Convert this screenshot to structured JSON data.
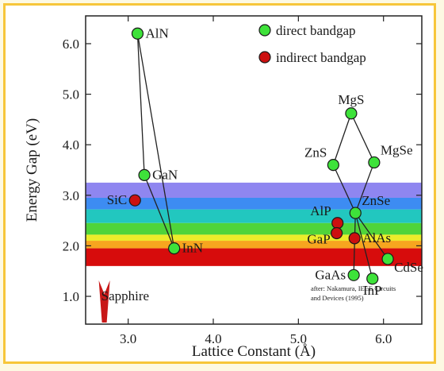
{
  "chart_data": {
    "type": "scatter",
    "xlabel": "Lattice Constant (Å)",
    "ylabel": "Energy Gap (eV)",
    "xlim": [
      2.5,
      6.45
    ],
    "ylim": [
      0.45,
      6.55
    ],
    "xticks": [
      "3.0",
      "4.0",
      "5.0",
      "6.0"
    ],
    "xtick_values": [
      3.0,
      4.0,
      5.0,
      6.0
    ],
    "yticks": [
      "1.0",
      "2.0",
      "3.0",
      "4.0",
      "5.0",
      "6.0"
    ],
    "ytick_values": [
      1.0,
      2.0,
      3.0,
      4.0,
      5.0,
      6.0
    ],
    "grid": false,
    "legend_position": "top-right",
    "legend": [
      {
        "label": "direct bandgap",
        "color": "#3ee23a"
      },
      {
        "label": "indirect bandgap",
        "color": "#cc1010"
      }
    ],
    "bands": [
      {
        "from": 2.95,
        "to": 3.25,
        "color": "#8f86f0"
      },
      {
        "from": 2.72,
        "to": 2.95,
        "color": "#3d8cf2"
      },
      {
        "from": 2.45,
        "to": 2.72,
        "color": "#22c7bf"
      },
      {
        "from": 2.22,
        "to": 2.45,
        "color": "#4fd43a"
      },
      {
        "from": 2.1,
        "to": 2.22,
        "color": "#ecec2a"
      },
      {
        "from": 1.95,
        "to": 2.1,
        "color": "#f7a51f"
      },
      {
        "from": 1.6,
        "to": 1.95,
        "color": "#d70c0c"
      }
    ],
    "points": [
      {
        "label": "AlN",
        "x": 3.11,
        "y": 6.2,
        "type": "direct",
        "label_pos": "right"
      },
      {
        "label": "GaN",
        "x": 3.19,
        "y": 3.4,
        "type": "direct",
        "label_pos": "right"
      },
      {
        "label": "InN",
        "x": 3.54,
        "y": 1.95,
        "type": "direct",
        "label_pos": "right"
      },
      {
        "label": "SiC",
        "x": 3.08,
        "y": 2.9,
        "type": "indirect",
        "label_pos": "left"
      },
      {
        "label": "MgS",
        "x": 5.62,
        "y": 4.62,
        "type": "direct",
        "label_pos": "above"
      },
      {
        "label": "ZnS",
        "x": 5.41,
        "y": 3.6,
        "type": "direct",
        "label_pos": "above-left"
      },
      {
        "label": "MgSe",
        "x": 5.89,
        "y": 3.65,
        "type": "direct",
        "label_pos": "above-right"
      },
      {
        "label": "ZnSe",
        "x": 5.67,
        "y": 2.65,
        "type": "direct",
        "label_pos": "above-right"
      },
      {
        "label": "AlP",
        "x": 5.46,
        "y": 2.45,
        "type": "indirect",
        "label_pos": "above-left"
      },
      {
        "label": "GaP",
        "x": 5.45,
        "y": 2.25,
        "type": "indirect",
        "label_pos": "below-left"
      },
      {
        "label": "AlAs",
        "x": 5.66,
        "y": 2.15,
        "type": "indirect",
        "label_pos": "right"
      },
      {
        "label": "GaAs",
        "x": 5.65,
        "y": 1.42,
        "type": "direct",
        "label_pos": "left"
      },
      {
        "label": "InP",
        "x": 5.87,
        "y": 1.35,
        "type": "direct",
        "label_pos": "below"
      },
      {
        "label": "CdSe",
        "x": 6.05,
        "y": 1.74,
        "type": "direct",
        "label_pos": "below-right"
      }
    ],
    "lines": [
      [
        "AlN",
        "GaN"
      ],
      [
        "AlN",
        "InN"
      ],
      [
        "GaN",
        "InN"
      ],
      [
        "MgS",
        "ZnS"
      ],
      [
        "MgS",
        "MgSe"
      ],
      [
        "ZnS",
        "ZnSe"
      ],
      [
        "MgSe",
        "ZnSe"
      ],
      [
        "ZnSe",
        "GaAs"
      ],
      [
        "ZnSe",
        "InP"
      ],
      [
        "ZnSe",
        "CdSe"
      ]
    ],
    "annotations": {
      "sapphire": {
        "label": "Sapphire",
        "x": 2.72
      },
      "credit_line1": "after: Nakamura, IEEE Circuits",
      "credit_line2": "and Devices (1995)"
    }
  }
}
